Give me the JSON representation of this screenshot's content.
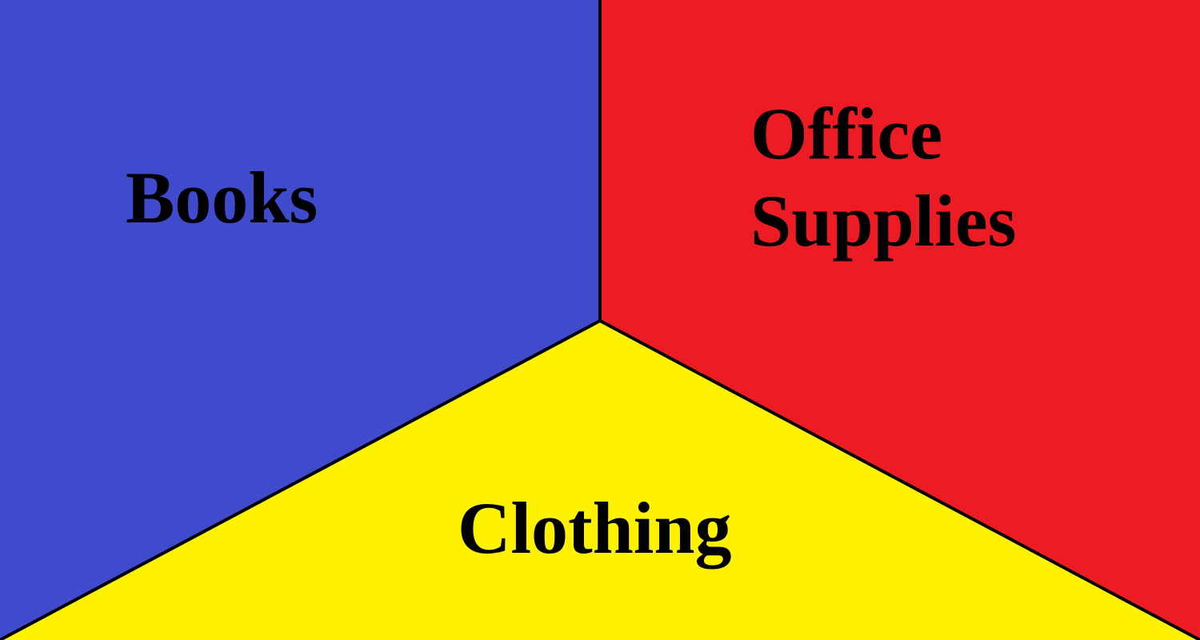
{
  "regions": {
    "books": {
      "label": "Books",
      "color": "#3f4acd"
    },
    "office_supplies": {
      "label_line1": "Office",
      "label_line2": "Supplies",
      "color": "#ed1c24"
    },
    "clothing": {
      "label": "Clothing",
      "color": "#fff200"
    }
  },
  "divider_color": "#000000"
}
